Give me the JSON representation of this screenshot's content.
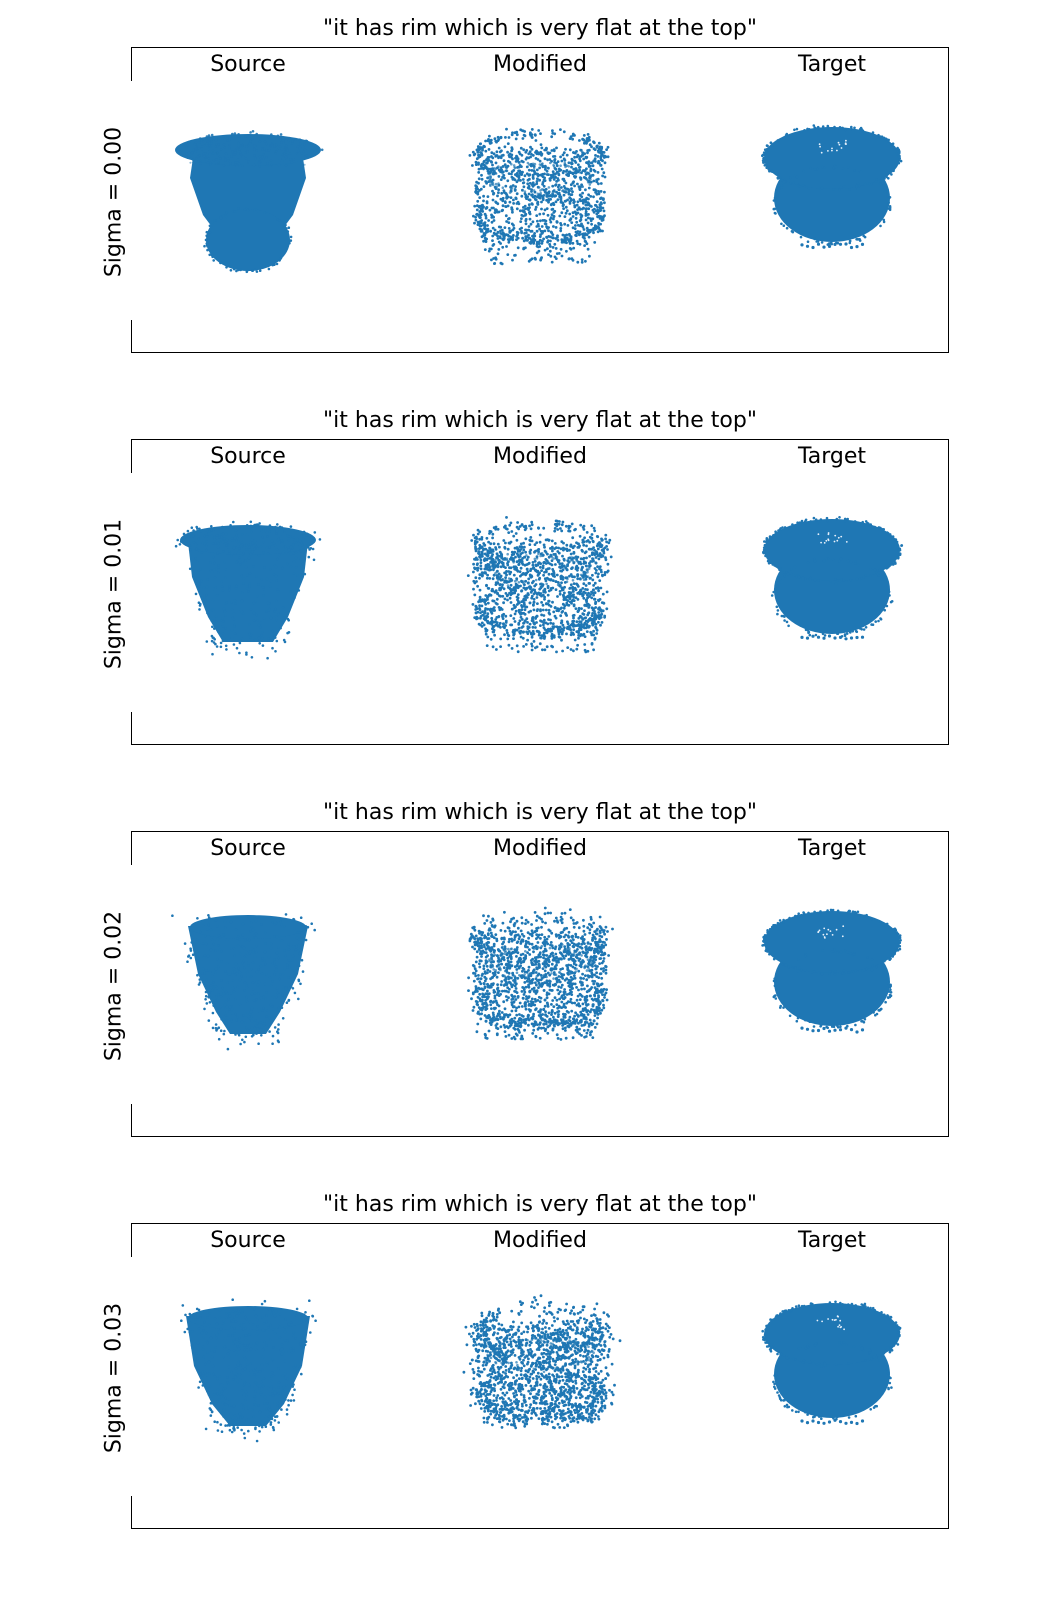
{
  "chart_data": {
    "type": "scatter",
    "point_color": "#1f77b4",
    "column_labels": [
      "Source",
      "Modified",
      "Target"
    ],
    "panels": [
      {
        "title": "\"it has rim which is very flat at the top\"",
        "ylabel": "Sigma = 0.00",
        "sigma": 0.0
      },
      {
        "title": "\"it has rim which is very flat at the top\"",
        "ylabel": "Sigma = 0.01",
        "sigma": 0.01
      },
      {
        "title": "\"it has rim which is very flat at the top\"",
        "ylabel": "Sigma = 0.02",
        "sigma": 0.02
      },
      {
        "title": "\"it has rim which is very flat at the top\"",
        "ylabel": "Sigma = 0.03",
        "sigma": 0.03
      }
    ]
  }
}
